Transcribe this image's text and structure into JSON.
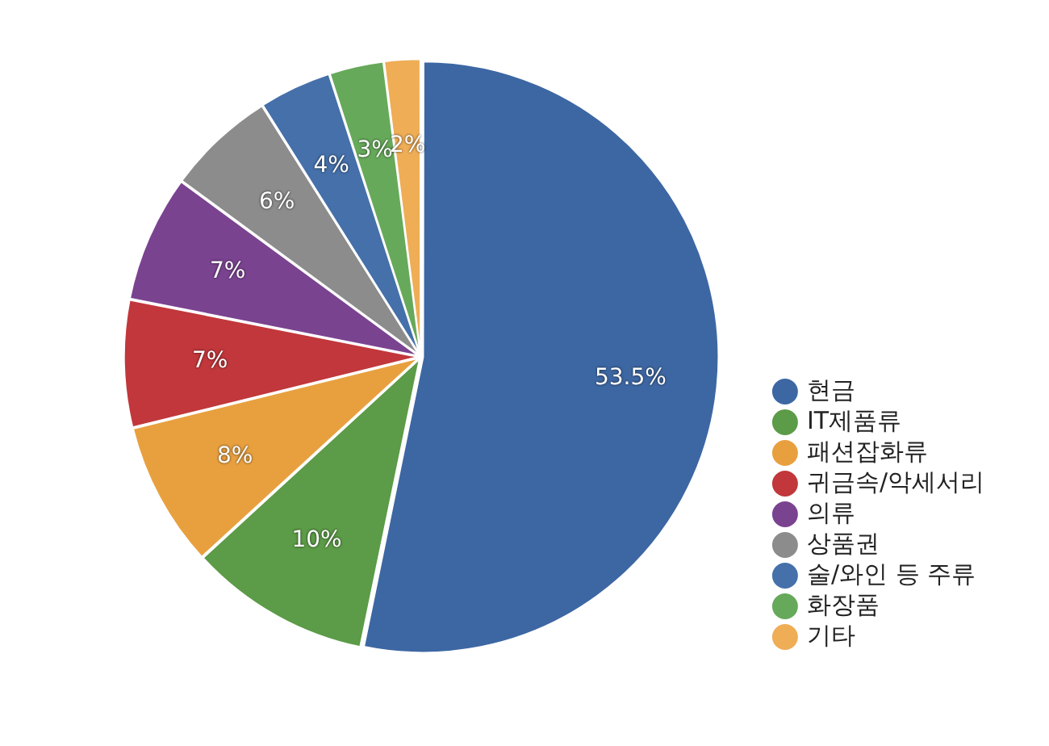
{
  "chart_data": {
    "type": "pie",
    "categories": [
      "현금",
      "IT제품류",
      "패션잡화류",
      "귀금속/악세서리",
      "의류",
      "상품권",
      "술/와인 등 주류",
      "화장품",
      "기타"
    ],
    "values": [
      53.5,
      10,
      8,
      7,
      7,
      6,
      4,
      3,
      2
    ],
    "colors": [
      "#3d67a3",
      "#5c9b47",
      "#e8a03f",
      "#c1373b",
      "#7a4390",
      "#8c8c8c",
      "#4570aa",
      "#67a95a",
      "#efad56"
    ],
    "value_labels": [
      "53.5%",
      "10%",
      "8%",
      "7%",
      "7%",
      "6%",
      "4%",
      "3%",
      "2%"
    ],
    "legend": "bottom right"
  }
}
